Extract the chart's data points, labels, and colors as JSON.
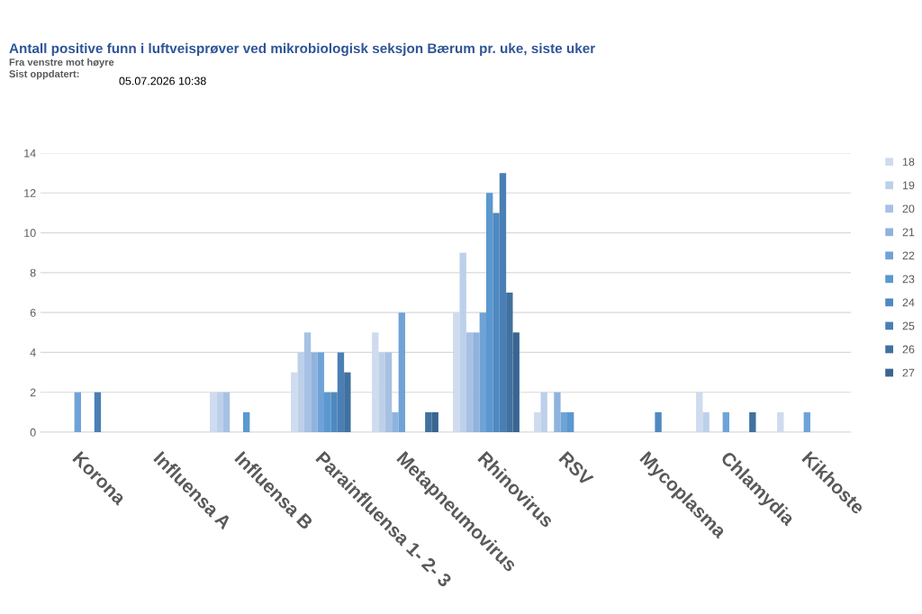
{
  "chart_data": {
    "type": "bar",
    "title": "Antall positive funn i luftveisprøver ved mikrobiologisk seksjon Bærum pr. uke, siste uker",
    "annotations": [
      "Fra venstre mot høyre",
      "Sist oppdatert:",
      "05.07.2026 10:38"
    ],
    "categories": [
      "Korona",
      "Influensa A",
      "Influensa B",
      "Parainfluensa 1- 2- 3",
      "Metapneumovirus",
      "Rhinovirus",
      "RSV",
      "Mycoplasma",
      "Chlamydia",
      "Kikhoste"
    ],
    "series": [
      {
        "name": "18",
        "color": "#cfdbee",
        "values": [
          0,
          0,
          2,
          3,
          5,
          6,
          1,
          0,
          2,
          1
        ]
      },
      {
        "name": "19",
        "color": "#bdd0ea",
        "values": [
          0,
          0,
          2,
          4,
          4,
          9,
          2,
          0,
          1,
          0
        ]
      },
      {
        "name": "20",
        "color": "#a7c1e4",
        "values": [
          0,
          0,
          2,
          5,
          4,
          5,
          0,
          0,
          0,
          0
        ]
      },
      {
        "name": "21",
        "color": "#8fb3de",
        "values": [
          0,
          0,
          0,
          4,
          1,
          5,
          2,
          0,
          0,
          0
        ]
      },
      {
        "name": "22",
        "color": "#6fa3d7",
        "values": [
          2,
          0,
          0,
          4,
          6,
          6,
          1,
          0,
          1,
          1
        ]
      },
      {
        "name": "23",
        "color": "#5b98cf",
        "values": [
          0,
          0,
          1,
          2,
          0,
          12,
          1,
          0,
          0,
          0
        ]
      },
      {
        "name": "24",
        "color": "#4f89c0",
        "values": [
          0,
          0,
          0,
          2,
          0,
          11,
          0,
          1,
          0,
          0
        ]
      },
      {
        "name": "25",
        "color": "#4a7fb5",
        "values": [
          2,
          0,
          0,
          4,
          0,
          13,
          0,
          0,
          0,
          0
        ]
      },
      {
        "name": "26",
        "color": "#41719f",
        "values": [
          0,
          0,
          0,
          3,
          1,
          7,
          0,
          0,
          1,
          0
        ]
      },
      {
        "name": "27",
        "color": "#3a6591",
        "values": [
          0,
          0,
          0,
          0,
          1,
          5,
          0,
          0,
          0,
          0
        ]
      }
    ],
    "ylim": [
      0,
      14
    ],
    "yticks": [
      0,
      2,
      4,
      6,
      8,
      10,
      12,
      14
    ],
    "grid": "y",
    "legend": "right"
  }
}
